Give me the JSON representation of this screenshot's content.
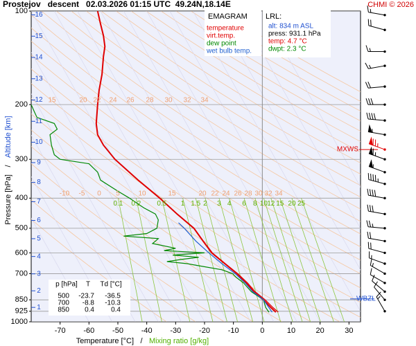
{
  "chart_data": {
    "type": "emagram",
    "title": "Prostejov   descent   02.03.2026 01:15 UTC  49.24N,18.14E",
    "copyright": "CHMI © 2026",
    "x_label": "Temperature [°C]",
    "x_label_secondary": "Mixing ratio [g/kg]",
    "y_label": "Pressure [hPa]",
    "y_label_secondary": "Altitude [km]",
    "separator": "/",
    "xlim": [
      -80,
      34
    ],
    "ylim": [
      1000,
      100
    ],
    "log_scale": true,
    "xticks": [
      -70,
      -60,
      -50,
      -40,
      -30,
      -20,
      -10,
      0,
      10,
      20,
      30
    ],
    "yticks": [
      100,
      200,
      300,
      400,
      500,
      600,
      700,
      850,
      925,
      1000
    ],
    "legend_title": "EMAGRAM",
    "series": [
      {
        "name": "temperature",
        "color": "#e00000",
        "pressure": [
          931,
          900,
          850,
          800,
          750,
          700,
          650,
          600,
          550,
          500,
          450,
          400,
          350,
          300,
          270,
          250,
          230,
          200,
          180,
          160,
          140,
          130,
          120,
          110,
          100
        ],
        "temperature": [
          4.7,
          3.0,
          0.4,
          -3.0,
          -5.5,
          -8.8,
          -13.0,
          -17.5,
          -20.5,
          -23.7,
          -29.5,
          -35.5,
          -43,
          -51,
          -55,
          -57,
          -57.5,
          -57,
          -56.5,
          -55.5,
          -55,
          -54.5,
          -55,
          -56,
          -57
        ]
      },
      {
        "name": "virt.temp.",
        "color": "#e00000",
        "pressure": [
          931,
          900,
          850,
          800,
          750,
          700,
          650,
          600,
          550,
          500,
          450,
          400,
          350,
          300
        ],
        "temperature": [
          5.5,
          3.7,
          1.0,
          -2.5,
          -5.1,
          -8.5,
          -12.8,
          -17.3,
          -20.4,
          -23.6,
          -29.4,
          -35.5,
          -43,
          -51
        ]
      },
      {
        "name": "dew point",
        "color": "#008800",
        "pressure": [
          931,
          900,
          850,
          800,
          750,
          720,
          700,
          680,
          660,
          650,
          640,
          630,
          620,
          610,
          600,
          590,
          580,
          560,
          550,
          540,
          530,
          520,
          500,
          470,
          450,
          430,
          400,
          380,
          350,
          330,
          310,
          300,
          290,
          270,
          250,
          240,
          230,
          220,
          210,
          200
        ],
        "temperature": [
          2.3,
          1.2,
          0.4,
          -3.8,
          -6.5,
          -9.0,
          -10.3,
          -14,
          -22,
          -26,
          -33,
          -28,
          -22,
          -31,
          -20,
          -34,
          -30,
          -38,
          -37,
          -36,
          -48,
          -40,
          -36.5,
          -36,
          -37,
          -41,
          -46,
          -50,
          -56,
          -57,
          -60,
          -70,
          -72,
          -73,
          -73.5,
          -71,
          -72,
          -78,
          -79,
          -80
        ]
      },
      {
        "name": "wet bulb temp.",
        "color": "#2060d0",
        "pressure": [
          931,
          850,
          800,
          750,
          700,
          650,
          600,
          550,
          500,
          480
        ],
        "temperature": [
          3.4,
          0.4,
          -3.3,
          -5.9,
          -9.4,
          -14,
          -18.5,
          -23,
          -27,
          -29
        ]
      }
    ],
    "mixing_ratios": [
      0.1,
      0.2,
      0.5,
      1,
      1.5,
      2,
      3,
      4,
      6,
      8,
      10,
      12,
      15,
      20,
      25
    ],
    "adiabat_labels_upper": [
      15,
      20,
      22,
      24,
      26,
      28,
      30,
      32,
      34
    ],
    "adiabat_labels_lower": [
      -10,
      -5,
      0,
      5,
      10,
      15,
      20,
      22,
      24,
      26,
      28,
      30,
      32,
      34
    ],
    "altitude_km": [
      1,
      2,
      3,
      4,
      5,
      6,
      7,
      8,
      9,
      10,
      11,
      12,
      13,
      14,
      15,
      16
    ],
    "lrl": {
      "title": "LRL:",
      "alt": "alt: 834 m ASL",
      "press": "press: 931.1 hPa",
      "temp": "temp: 4.7 °C",
      "dwpt": "dwpt: 2.3 °C"
    },
    "table": {
      "header": [
        "p [hPa]",
        "T",
        "Td [°C]"
      ],
      "rows": [
        [
          500,
          -23.7,
          -36.5
        ],
        [
          700,
          -8.8,
          -10.3
        ],
        [
          850,
          0.4,
          0.4
        ]
      ]
    },
    "max_wind": {
      "label": "MXWS",
      "pressure": 279
    },
    "wet_bulb_zero": {
      "label": "WBZL",
      "pressure": 844
    },
    "wind": {
      "pressure": [
        103,
        115,
        135,
        150,
        175,
        200,
        225,
        250,
        279,
        300,
        330,
        360,
        400,
        450,
        500,
        550,
        600,
        650,
        700,
        750,
        800,
        850,
        925
      ],
      "direction": [
        280,
        285,
        270,
        260,
        265,
        270,
        275,
        280,
        290,
        290,
        290,
        285,
        280,
        280,
        275,
        280,
        285,
        290,
        300,
        300,
        310,
        320,
        330
      ],
      "speed": [
        15,
        20,
        15,
        15,
        20,
        30,
        40,
        55,
        75,
        65,
        55,
        45,
        40,
        30,
        25,
        20,
        20,
        15,
        15,
        10,
        10,
        10,
        15
      ]
    }
  }
}
